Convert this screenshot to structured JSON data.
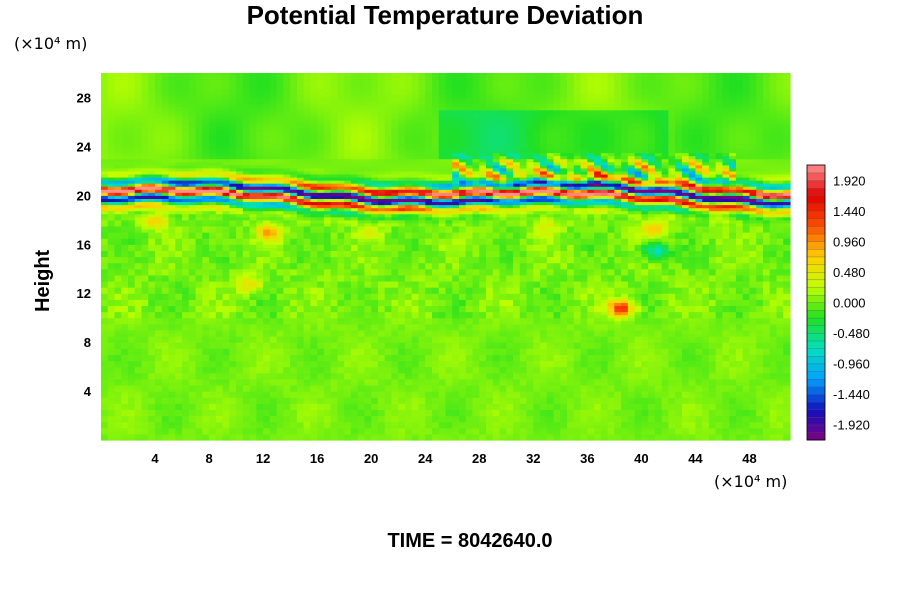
{
  "chart_data": {
    "type": "heatmap",
    "title": "Potential Temperature Deviation",
    "ylabel": "Height",
    "xunit": "(×10⁴ m)",
    "yunit": "(×10⁴ m)",
    "xlim": [
      0,
      51
    ],
    "ylim": [
      0,
      30
    ],
    "xticks": [
      "4",
      "8",
      "12",
      "16",
      "20",
      "24",
      "28",
      "32",
      "36",
      "40",
      "44",
      "48"
    ],
    "yticks": [
      "4",
      "8",
      "12",
      "16",
      "20",
      "24",
      "28"
    ],
    "colorbar": {
      "min": -2.16,
      "max": 2.16,
      "step": 0.12,
      "ticks": [
        "1.920",
        "1.440",
        "0.960",
        "0.480",
        "0.000",
        "-0.480",
        "-0.960",
        "-1.440",
        "-1.920"
      ]
    },
    "footer": "TIME = 8042640.0",
    "colormap": [
      "#800080",
      "#1010c0",
      "#00a0ff",
      "#00e0c0",
      "#20e020",
      "#c0ff00",
      "#ffd000",
      "#ff5000",
      "#e00000",
      "#ff9090"
    ]
  }
}
